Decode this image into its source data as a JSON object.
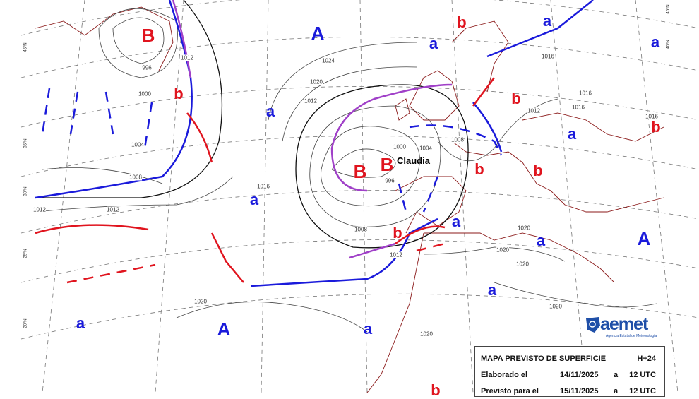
{
  "map": {
    "storm_name": "Claudia",
    "high_labels_major": [
      "A",
      "A",
      "A"
    ],
    "high_labels_minor": [
      "a",
      "a",
      "a",
      "a",
      "a",
      "a",
      "a",
      "a",
      "a",
      "a",
      "a"
    ],
    "low_labels_major": [
      "B",
      "B",
      "B"
    ],
    "low_labels_minor": [
      "b",
      "b",
      "b",
      "b",
      "b",
      "b",
      "b",
      "b"
    ],
    "isobar_labels": [
      "996",
      "996",
      "1000",
      "1004",
      "1008",
      "1012",
      "1012",
      "1016",
      "1020",
      "1024",
      "1000",
      "1004",
      "1008",
      "1012",
      "1016",
      "1012",
      "1008",
      "1012",
      "1016",
      "1016",
      "1016",
      "1020",
      "1020",
      "1020",
      "1020",
      "1020",
      "1020",
      "1012"
    ],
    "latitude_labels": [
      "45ºN",
      "40ºN",
      "35ºN",
      "30ºN",
      "25ºN",
      "20ºN"
    ],
    "colors": {
      "high": "#1a1adb",
      "low": "#e0141e",
      "cold_front": "#1a1adb",
      "warm_front": "#e0141e",
      "occluded_front": "#a040c8",
      "coast": "#8b1a1a"
    }
  },
  "legend": {
    "title": "MAPA PREVISTO DE SUPERFICIE",
    "horizon": "H+24",
    "made_label": "Elaborado el",
    "made_date": "14/11/2025",
    "made_at": "a",
    "made_time": "12 UTC",
    "valid_label": "Previsto para el",
    "valid_date": "15/11/2025",
    "valid_at": "a",
    "valid_time": "12 UTC"
  },
  "logo": {
    "text": "aemet",
    "subtitle": "Agencia Estatal de Meteorología"
  }
}
